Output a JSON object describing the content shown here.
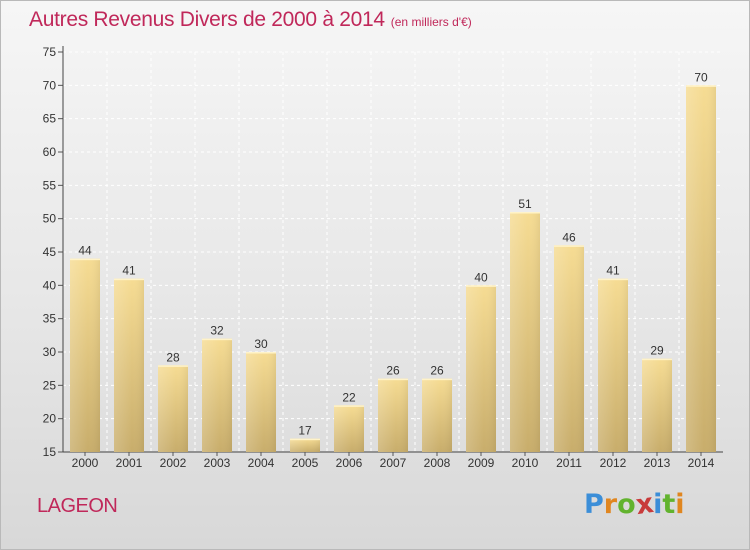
{
  "chart_data": {
    "type": "bar",
    "title": "Autres Revenus Divers de 2000 à 2014",
    "subtitle": "(en milliers d'€)",
    "categories": [
      "2000",
      "2001",
      "2002",
      "2003",
      "2004",
      "2005",
      "2006",
      "2007",
      "2008",
      "2009",
      "2010",
      "2011",
      "2012",
      "2013",
      "2014"
    ],
    "values": [
      44,
      41,
      28,
      32,
      30,
      17,
      22,
      26,
      26,
      40,
      51,
      46,
      41,
      29,
      70
    ],
    "ylim": [
      15,
      75
    ],
    "yticks": [
      15,
      20,
      25,
      30,
      35,
      40,
      45,
      50,
      55,
      60,
      65,
      70,
      75
    ],
    "xlabel": "",
    "ylabel": "",
    "grid": true,
    "data_labels": true,
    "bar_color": "#e6cf8a",
    "title_color": "#c0285a"
  },
  "location": "LAGEON",
  "brand": {
    "letters": [
      "P",
      "r",
      "o",
      "x",
      "i",
      "t",
      "i"
    ],
    "colors": [
      "#3b8ed8",
      "#e0861f",
      "#62b32e",
      "#c83a3a",
      "#3b8ed8",
      "#62b32e",
      "#e0861f"
    ]
  }
}
